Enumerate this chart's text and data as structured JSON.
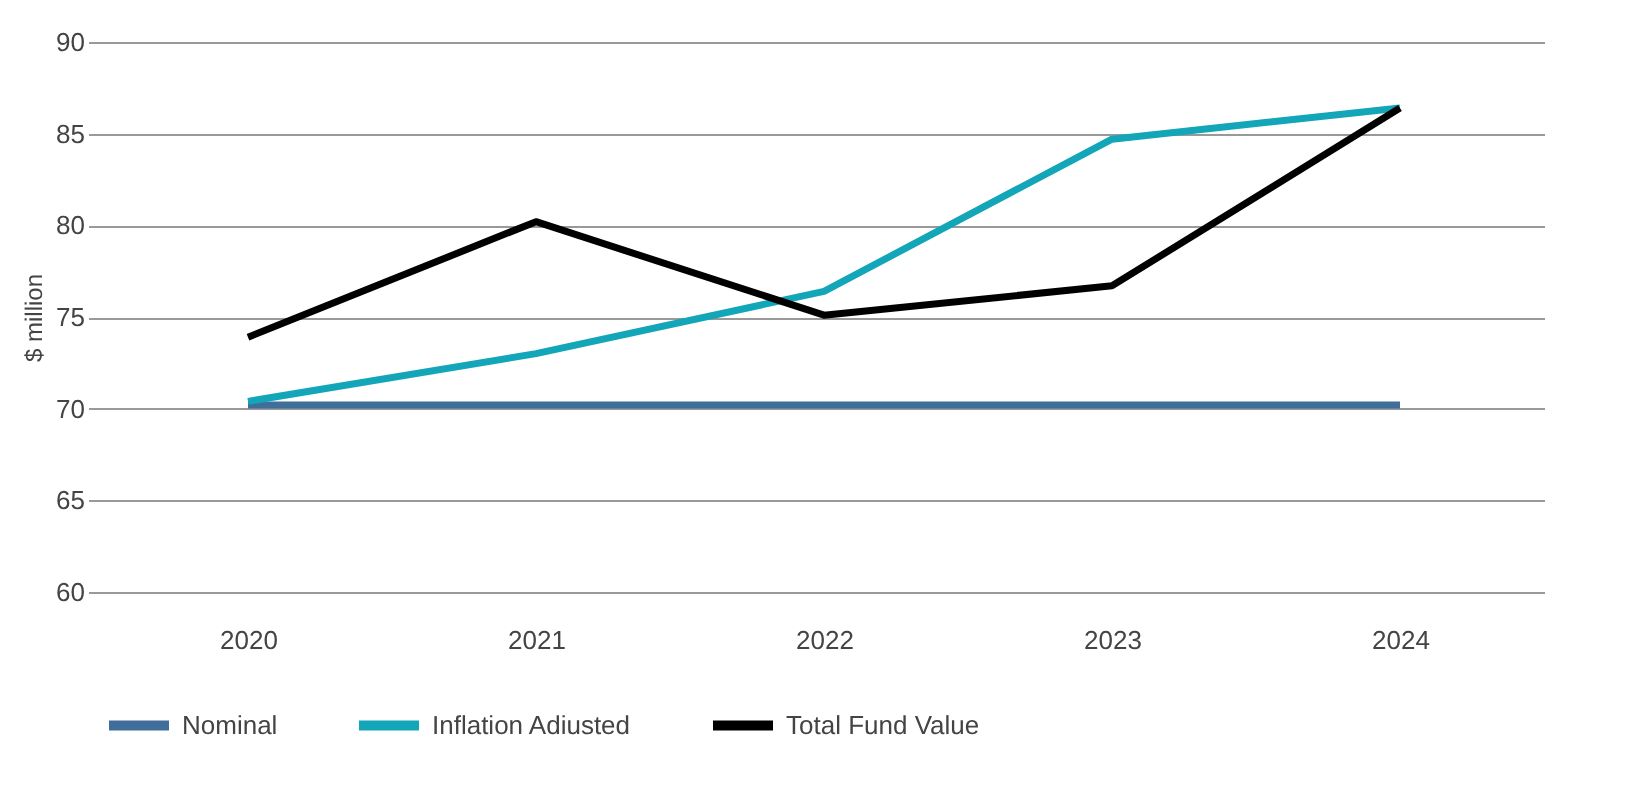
{
  "chart_data": {
    "type": "line",
    "ylabel": "$ million",
    "categories": [
      "2020",
      "2021",
      "2022",
      "2023",
      "2024"
    ],
    "series": [
      {
        "name": "Nominal",
        "color": "#3f6e9a",
        "values": [
          70.2,
          70.2,
          70.2,
          70.2,
          70.2
        ]
      },
      {
        "name": "Inflation Adiusted",
        "color": "#12a6b8",
        "values": [
          70.4,
          73.0,
          76.4,
          84.7,
          86.4
        ]
      },
      {
        "name": "Total Fund Value",
        "color": "#000000",
        "values": [
          73.9,
          80.2,
          75.1,
          76.7,
          86.4
        ]
      }
    ],
    "ylim": [
      60,
      90
    ],
    "yticks": [
      60,
      65,
      70,
      75,
      80,
      85,
      90
    ],
    "grid": "y",
    "legend": "bottom",
    "marker": "none",
    "line_style": "solid"
  }
}
